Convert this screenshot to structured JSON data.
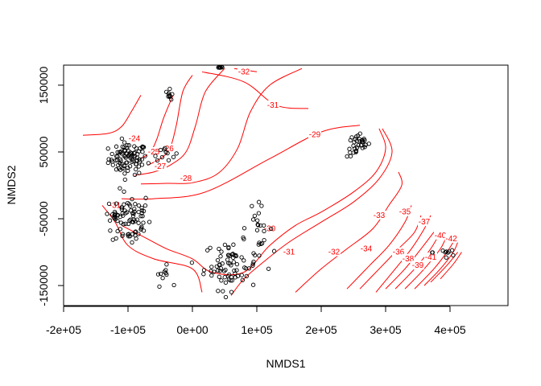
{
  "chart_data": {
    "type": "scatter",
    "title": "",
    "xlabel": "NMDS1",
    "ylabel": "NMDS2",
    "xlim": [
      -200000,
      490000
    ],
    "ylim": [
      -180000,
      180000
    ],
    "x_ticks": [
      {
        "value": -200000,
        "label": "-2e+05"
      },
      {
        "value": -100000,
        "label": "-1e+05"
      },
      {
        "value": 0,
        "label": "0e+00"
      },
      {
        "value": 100000,
        "label": "1e+05"
      },
      {
        "value": 200000,
        "label": "2e+05"
      },
      {
        "value": 300000,
        "label": "3e+05"
      },
      {
        "value": 400000,
        "label": "4e+05"
      }
    ],
    "y_ticks": [
      {
        "value": -150000,
        "label": "-150000"
      },
      {
        "value": -50000,
        "label": "-50000"
      },
      {
        "value": 50000,
        "label": "50000"
      },
      {
        "value": 150000,
        "label": "150000"
      }
    ],
    "grid": false,
    "legend": "none",
    "point_color": "#000000",
    "contour_color": "#ff0000",
    "contours": [
      {
        "level": "-24",
        "points": [
          [
            -170000,
            75000
          ],
          [
            -130000,
            78000
          ],
          [
            -110000,
            88000
          ],
          [
            -95000,
            110000
          ],
          [
            -80000,
            135000
          ]
        ],
        "label_at": [
          -90000,
          70000
        ]
      },
      {
        "level": "-25",
        "points": [
          [
            -80000,
            40000
          ],
          [
            -65000,
            50000
          ],
          [
            -55000,
            70000
          ],
          [
            -45000,
            100000
          ],
          [
            -30000,
            135000
          ]
        ],
        "label_at": [
          -60000,
          50000
        ]
      },
      {
        "level": "-26",
        "points": [
          [
            -70000,
            30000
          ],
          [
            -50000,
            40000
          ],
          [
            -35000,
            55000
          ],
          [
            -25000,
            90000
          ],
          [
            -15000,
            140000
          ],
          [
            0,
            165000
          ]
        ],
        "label_at": [
          -38000,
          55000
        ]
      },
      {
        "level": "-27",
        "points": [
          [
            -90000,
            15000
          ],
          [
            -60000,
            20000
          ],
          [
            -35000,
            30000
          ],
          [
            -10000,
            50000
          ],
          [
            5000,
            90000
          ],
          [
            20000,
            140000
          ],
          [
            50000,
            175000
          ]
        ],
        "label_at": [
          -50000,
          28000
        ]
      },
      {
        "level": "-28",
        "points": [
          [
            -80000,
            2000
          ],
          [
            -40000,
            3000
          ],
          [
            0,
            4000
          ],
          [
            40000,
            18000
          ],
          [
            70000,
            55000
          ],
          [
            90000,
            110000
          ],
          [
            120000,
            150000
          ],
          [
            170000,
            175000
          ]
        ],
        "label_at": [
          -10000,
          10000
        ]
      },
      {
        "level": "-29",
        "points": [
          [
            -110000,
            -20000
          ],
          [
            -60000,
            -20000
          ],
          [
            20000,
            -10000
          ],
          [
            120000,
            40000
          ],
          [
            200000,
            80000
          ],
          [
            260000,
            90000
          ]
        ],
        "label_at": [
          190000,
          76000
        ]
      },
      {
        "level": "-30",
        "points": [
          [
            -110000,
            -60000
          ],
          [
            -70000,
            -80000
          ],
          [
            -40000,
            -95000
          ],
          [
            0,
            -110000
          ],
          [
            30000,
            -130000
          ],
          [
            80000,
            -130000
          ],
          [
            120000,
            -90000
          ],
          [
            160000,
            -60000
          ],
          [
            200000,
            -40000
          ],
          [
            250000,
            -10000
          ],
          [
            285000,
            20000
          ],
          [
            300000,
            55000
          ],
          [
            290000,
            85000
          ]
        ],
        "label_at": [
          120000,
          -65000
        ]
      },
      {
        "level": "-31",
        "points": [
          [
            -140000,
            -30000
          ],
          [
            -120000,
            -55000
          ],
          [
            -100000,
            -90000
          ],
          [
            -60000,
            -110000
          ],
          [
            0,
            -125000
          ],
          [
            15000,
            -160000
          ]
        ],
        "label_at": [
          -120000,
          -30000
        ]
      },
      {
        "level": "-31",
        "points": [
          [
            60000,
            -165000
          ],
          [
            80000,
            -140000
          ],
          [
            110000,
            -115000
          ],
          [
            150000,
            -85000
          ],
          [
            200000,
            -55000
          ],
          [
            250000,
            -25000
          ],
          [
            290000,
            10000
          ],
          [
            310000,
            50000
          ],
          [
            295000,
            85000
          ]
        ],
        "label_at": [
          150000,
          -100000
        ]
      },
      {
        "level": "-31",
        "points": [
          [
            15000,
            170000
          ],
          [
            80000,
            155000
          ],
          [
            130000,
            120000
          ],
          [
            180000,
            115000
          ]
        ],
        "label_at": [
          125000,
          120000
        ]
      },
      {
        "level": "-32",
        "points": [
          [
            65000,
            175000
          ],
          [
            100000,
            170000
          ]
        ],
        "label_at": [
          80000,
          170000
        ]
      },
      {
        "level": "-32",
        "points": [
          [
            160000,
            -160000
          ],
          [
            200000,
            -125000
          ],
          [
            240000,
            -95000
          ],
          [
            280000,
            -65000
          ],
          [
            305000,
            -30000
          ],
          [
            325000,
            0
          ],
          [
            320000,
            20000
          ]
        ],
        "label_at": [
          220000,
          -100000
        ]
      },
      {
        "level": "-33",
        "points": [
          [
            240000,
            -155000
          ],
          [
            275000,
            -120000
          ],
          [
            305000,
            -90000
          ],
          [
            330000,
            -55000
          ],
          [
            340000,
            -30000
          ]
        ],
        "label_at": [
          290000,
          -45000
        ]
      },
      {
        "level": "-34",
        "points": [
          [
            260000,
            -155000
          ],
          [
            290000,
            -125000
          ],
          [
            320000,
            -95000
          ],
          [
            345000,
            -70000
          ],
          [
            355000,
            -45000
          ]
        ],
        "label_at": [
          270000,
          -95000
        ]
      },
      {
        "level": "-35",
        "points": [
          [
            285000,
            -160000
          ],
          [
            315000,
            -125000
          ],
          [
            340000,
            -95000
          ],
          [
            360000,
            -65000
          ],
          [
            370000,
            -45000
          ]
        ],
        "label_at": [
          330000,
          -40000
        ]
      },
      {
        "level": "-36",
        "points": [
          [
            300000,
            -155000
          ],
          [
            330000,
            -125000
          ],
          [
            355000,
            -95000
          ],
          [
            375000,
            -70000
          ]
        ],
        "label_at": [
          320000,
          -100000
        ]
      },
      {
        "level": "-37",
        "points": [
          [
            315000,
            -155000
          ],
          [
            345000,
            -125000
          ],
          [
            370000,
            -95000
          ],
          [
            385000,
            -70000
          ]
        ],
        "label_at": [
          360000,
          -55000
        ]
      },
      {
        "level": "-38",
        "points": [
          [
            330000,
            -155000
          ],
          [
            360000,
            -125000
          ],
          [
            385000,
            -95000
          ],
          [
            395000,
            -75000
          ]
        ],
        "label_at": [
          335000,
          -110000
        ]
      },
      {
        "level": "-39",
        "points": [
          [
            345000,
            -155000
          ],
          [
            375000,
            -125000
          ],
          [
            395000,
            -100000
          ],
          [
            405000,
            -85000
          ]
        ],
        "label_at": [
          350000,
          -120000
        ]
      },
      {
        "level": "-40",
        "points": [
          [
            360000,
            -150000
          ],
          [
            385000,
            -125000
          ],
          [
            405000,
            -100000
          ],
          [
            412000,
            -85000
          ]
        ],
        "label_at": [
          385000,
          -75000
        ]
      },
      {
        "level": "-41",
        "points": [
          [
            370000,
            -145000
          ],
          [
            395000,
            -120000
          ],
          [
            412000,
            -100000
          ]
        ],
        "label_at": [
          370000,
          -108000
        ]
      },
      {
        "level": "-42",
        "points": [
          [
            385000,
            -140000
          ],
          [
            405000,
            -118000
          ],
          [
            418000,
            -100000
          ]
        ],
        "label_at": [
          402000,
          -80000
        ]
      }
    ],
    "point_clusters": [
      {
        "cx": -100000,
        "cy": 40000,
        "sx": 25000,
        "sy": 20000,
        "n": 90
      },
      {
        "cx": -95000,
        "cy": -50000,
        "sx": 25000,
        "sy": 35000,
        "n": 70
      },
      {
        "cx": -120000,
        "cy": -45000,
        "sx": 12000,
        "sy": 10000,
        "n": 15
      },
      {
        "cx": -45000,
        "cy": 50000,
        "sx": 15000,
        "sy": 10000,
        "n": 12
      },
      {
        "cx": -45000,
        "cy": -135000,
        "sx": 10000,
        "sy": 12000,
        "n": 10
      },
      {
        "cx": -35000,
        "cy": 135000,
        "sx": 5000,
        "sy": 7000,
        "n": 10
      },
      {
        "cx": 43000,
        "cy": 177000,
        "sx": 3000,
        "sy": 1200,
        "n": 8
      },
      {
        "cx": 60000,
        "cy": -120000,
        "sx": 35000,
        "sy": 30000,
        "n": 80
      },
      {
        "cx": 100000,
        "cy": -60000,
        "sx": 20000,
        "sy": 25000,
        "n": 20
      },
      {
        "cx": 258000,
        "cy": 60000,
        "sx": 15000,
        "sy": 15000,
        "n": 35
      },
      {
        "cx": 395000,
        "cy": -100000,
        "sx": 18000,
        "sy": 12000,
        "n": 10
      }
    ]
  }
}
